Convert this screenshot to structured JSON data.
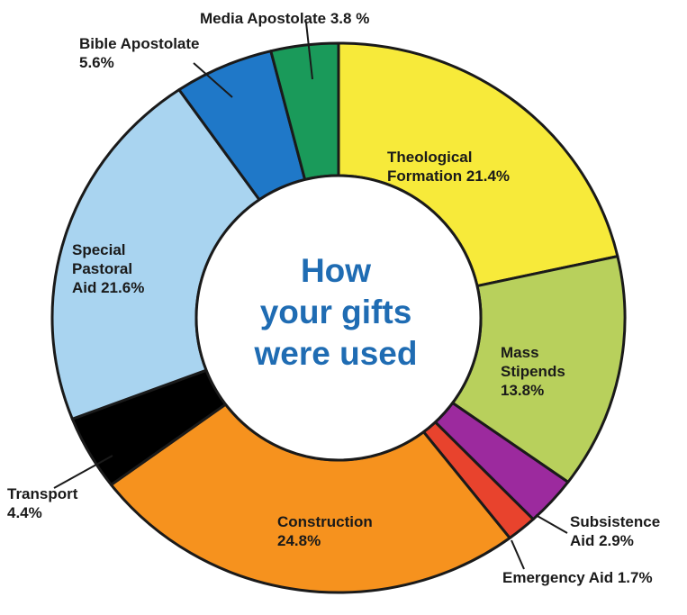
{
  "chart_data": {
    "type": "pie",
    "title": "How your gifts were used",
    "title_lines": [
      "How",
      "your gifts",
      "were used"
    ],
    "unit": "%",
    "slices": [
      {
        "label": "Theological Formation",
        "value": 21.4,
        "text_lines": [
          "Theological",
          "Formation 21.4%"
        ],
        "color": "#f7ea3a"
      },
      {
        "label": "Mass Stipends",
        "value": 13.8,
        "text_lines": [
          "Mass",
          "Stipends",
          "13.8%"
        ],
        "color": "#b8d05c"
      },
      {
        "label": "Subsistence Aid",
        "value": 2.9,
        "text_lines": [
          "Subsistence",
          "Aid 2.9%"
        ],
        "color": "#9c2a9e"
      },
      {
        "label": "Emergency Aid",
        "value": 1.7,
        "text_lines": [
          "Emergency Aid 1.7%"
        ],
        "color": "#e8432d"
      },
      {
        "label": "Construction",
        "value": 24.8,
        "text_lines": [
          "Construction",
          "24.8%"
        ],
        "color": "#f6921e"
      },
      {
        "label": "Transport",
        "value": 4.4,
        "text_lines": [
          "Transport",
          "4.4%"
        ],
        "color": "#000000"
      },
      {
        "label": "Special Pastoral Aid",
        "value": 21.6,
        "text_lines": [
          "Special",
          "Pastoral",
          "Aid 21.6%"
        ],
        "color": "#a9d4f0"
      },
      {
        "label": "Bible Apostolate",
        "value": 5.6,
        "text_lines": [
          "Bible Apostolate",
          "5.6%"
        ],
        "color": "#1f78c8"
      },
      {
        "label": "Media Apostolate",
        "value": 3.8,
        "text_lines": [
          "Media Apostolate 3.8 %"
        ],
        "color": "#1a9a5a"
      }
    ],
    "colors": {
      "title": "#1f6cb3",
      "outline": "#1a1a1a",
      "label_text": "#1a1a1a"
    }
  }
}
